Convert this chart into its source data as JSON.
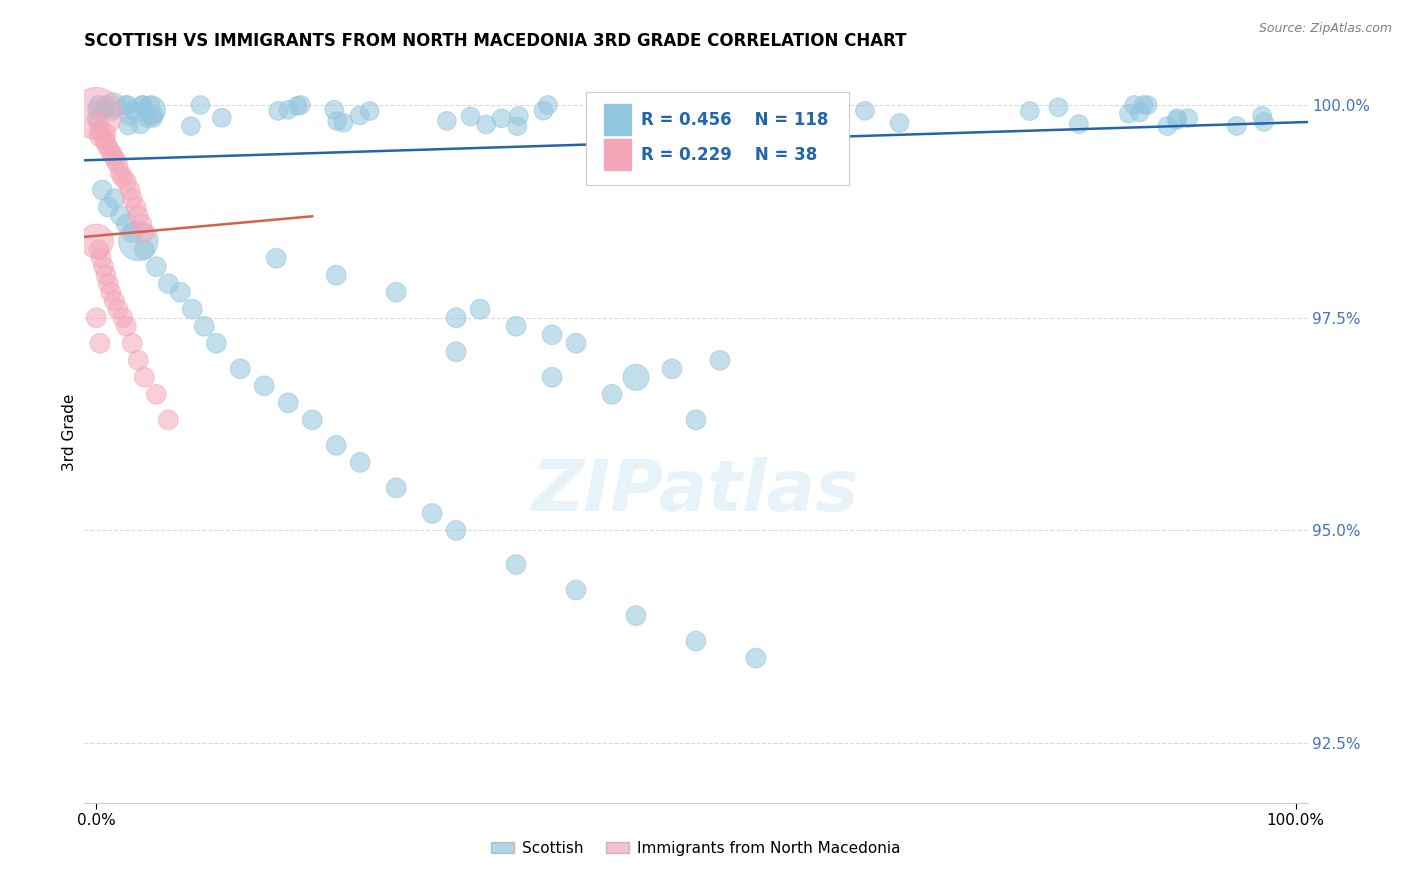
{
  "title": "SCOTTISH VS IMMIGRANTS FROM NORTH MACEDONIA 3RD GRADE CORRELATION CHART",
  "source": "Source: ZipAtlas.com",
  "ylabel": "3rd Grade",
  "xlim": [
    -0.01,
    1.01
  ],
  "ylim": [
    0.918,
    1.005
  ],
  "yticks": [
    0.925,
    0.95,
    0.975,
    1.0
  ],
  "ytick_labels": [
    "92.5%",
    "95.0%",
    "97.5%",
    "100.0%"
  ],
  "xtick_labels": [
    "0.0%",
    "100.0%"
  ],
  "legend_blue_label": "Scottish",
  "legend_pink_label": "Immigrants from North Macedonia",
  "R_blue": "0.456",
  "N_blue": "118",
  "R_pink": "0.229",
  "N_pink": "38",
  "blue_color": "#92c5de",
  "pink_color": "#f4a6b8",
  "blue_line_color": "#2166ac",
  "pink_line_color": "#d6604d",
  "ytick_color": "#4472c4",
  "watermark_text": "ZIPatlas",
  "blue_line_y0": 0.9935,
  "blue_line_y1": 0.998,
  "pink_line_y0": 0.9845,
  "pink_line_y1": 0.9975
}
